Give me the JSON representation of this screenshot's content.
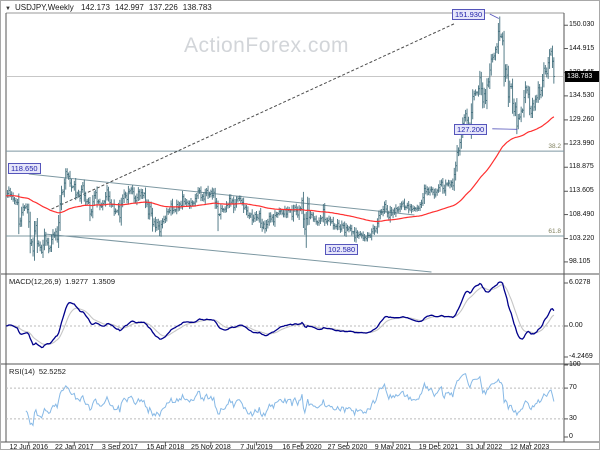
{
  "header": {
    "dropdown_icon": "▼",
    "symbol": "USDJPY,Weekly",
    "open": "142.173",
    "high": "142.997",
    "low": "137.226",
    "close": "138.783"
  },
  "watermark": "ActionForex.com",
  "colors": {
    "candle": "#44707e",
    "ma_line": "#ff2f2f",
    "macd_line": "#00008b",
    "macd_signal": "#c6c6c6",
    "rsi_line": "#87b9e6",
    "annotation_text": "#2222aa",
    "level_lines": "#7d98a2",
    "trendline": "#4d4d4d",
    "current_price_line": "#b4b4b4",
    "tag_bg": "#000000",
    "tag_fg": "#ffffff",
    "border": "#555555",
    "dashed_ref": "#bbbbbb"
  },
  "chart_data": {
    "type": "ohlc",
    "symbol": "USDJPY",
    "timeframe": "Weekly",
    "x_labels": [
      "12 Jun 2016",
      "22 Jan 2017",
      "3 Sep 2017",
      "15 Apr 2018",
      "25 Nov 2018",
      "7 Jul 2019",
      "16 Feb 2020",
      "27 Sep 2020",
      "9 May 2021",
      "19 Dec 2021",
      "31 Jul 2022",
      "12 Mar 2023"
    ],
    "price_panel": {
      "y_ticks": [
        "150.030",
        "144.915",
        "139.645",
        "134.530",
        "129.260",
        "123.990",
        "118.875",
        "113.605",
        "108.490",
        "103.220",
        "98.105"
      ],
      "last_price_tag": "138.783",
      "current_price_line": 138.783,
      "fib_levels": [
        {
          "label": "38.2",
          "price": 122.4
        },
        {
          "label": "61.8",
          "price": 103.8
        }
      ],
      "annotations": [
        {
          "text": "151.930",
          "week": 347,
          "price": 151.94,
          "anchor": "high",
          "gap": 10
        },
        {
          "text": "127.200",
          "week": 360,
          "price": 127.2,
          "anchor": "level",
          "gap": 26
        },
        {
          "text": "118.650",
          "week": 42,
          "price": 118.65,
          "anchor": "level",
          "at_left": true,
          "gap": 4
        },
        {
          "text": "102.580",
          "week": 254,
          "price": 102.58,
          "anchor": "low",
          "gap": 4
        }
      ],
      "trend_lines": [
        {
          "name": "rising-dashed-trendline",
          "from": {
            "week": 32,
            "price": 109.7
          },
          "to": {
            "week": 316,
            "price": 150.5
          },
          "style": "dashed"
        },
        {
          "name": "channel-upper",
          "from": {
            "week": 16,
            "price": 117.4
          },
          "to": {
            "week": 287,
            "price": 108.4
          },
          "style": "solid"
        },
        {
          "name": "channel-lower",
          "from": {
            "week": 28,
            "price": 104.2
          },
          "to": {
            "week": 299,
            "price": 95.9
          },
          "style": "solid"
        }
      ],
      "ma": {
        "kind": "EMA",
        "period": 100
      }
    },
    "weekly_closes": [
      112.6,
      113.1,
      113.8,
      112.9,
      112.5,
      111.9,
      111.5,
      111.2,
      111.1,
      106.4,
      107.1,
      108.9,
      110.1,
      110.0,
      110.2,
      109.6,
      106.9,
      102.2,
      102.5,
      100.5,
      104.9,
      106.1,
      102.1,
      101.8,
      101.3,
      100.2,
      101.8,
      104.0,
      102.7,
      102.3,
      101.0,
      101.3,
      103.0,
      104.2,
      103.8,
      104.7,
      103.1,
      106.7,
      110.9,
      113.3,
      113.5,
      115.4,
      117.9,
      117.3,
      116.9,
      115.4,
      114.5,
      114.6,
      115.1,
      112.8,
      113.2,
      112.8,
      112.1,
      114.0,
      114.8,
      112.7,
      111.3,
      111.4,
      111.1,
      108.6,
      109.1,
      111.3,
      112.7,
      113.3,
      111.3,
      111.3,
      110.4,
      110.3,
      110.9,
      111.3,
      112.4,
      113.9,
      112.5,
      111.1,
      110.7,
      110.7,
      109.2,
      109.2,
      109.3,
      110.2,
      107.8,
      110.8,
      112.0,
      113.0,
      112.6,
      111.8,
      113.5,
      113.7,
      114.1,
      113.5,
      112.1,
      111.5,
      112.2,
      113.5,
      112.6,
      113.3,
      112.7,
      113.1,
      111.1,
      110.8,
      108.6,
      110.2,
      108.8,
      106.3,
      106.9,
      105.7,
      106.8,
      106.0,
      104.7,
      106.3,
      107.0,
      107.4,
      107.7,
      109.1,
      109.1,
      109.4,
      110.8,
      109.4,
      109.5,
      109.5,
      110.7,
      110.0,
      110.8,
      110.5,
      112.4,
      111.4,
      111.0,
      111.2,
      110.9,
      110.5,
      111.2,
      111.0,
      111.0,
      112.0,
      112.6,
      113.7,
      113.7,
      112.2,
      112.5,
      111.9,
      113.2,
      113.8,
      112.8,
      112.9,
      113.5,
      112.7,
      113.4,
      111.2,
      110.3,
      108.5,
      108.5,
      109.8,
      109.6,
      109.5,
      109.7,
      110.5,
      110.7,
      112.0,
      111.2,
      111.5,
      110.0,
      110.9,
      111.7,
      112.0,
      112.0,
      111.6,
      111.1,
      109.9,
      110.1,
      109.3,
      108.3,
      108.2,
      108.6,
      107.3,
      107.7,
      108.5,
      107.9,
      107.7,
      108.7,
      106.6,
      105.7,
      106.4,
      105.4,
      106.3,
      106.9,
      108.1,
      107.5,
      107.9,
      106.9,
      108.3,
      108.5,
      108.7,
      109.2,
      109.3,
      108.8,
      108.6,
      109.5,
      108.6,
      109.4,
      109.5,
      109.5,
      108.1,
      109.5,
      110.1,
      109.3,
      108.4,
      109.7,
      109.8,
      111.6,
      107.5,
      105.3,
      107.6,
      110.8,
      107.9,
      108.5,
      108.4,
      107.5,
      107.5,
      106.9,
      106.7,
      107.1,
      107.6,
      107.8,
      109.6,
      107.4,
      106.9,
      107.2,
      107.5,
      106.9,
      107.0,
      106.1,
      105.8,
      105.9,
      106.6,
      105.8,
      105.3,
      106.2,
      106.1,
      104.6,
      105.6,
      105.3,
      105.6,
      105.4,
      104.7,
      104.7,
      103.4,
      104.6,
      103.9,
      104.1,
      104.2,
      104.0,
      103.3,
      103.5,
      103.2,
      103.9,
      103.9,
      103.8,
      104.7,
      105.4,
      104.9,
      105.4,
      106.6,
      108.3,
      109.0,
      108.9,
      109.6,
      110.7,
      109.7,
      108.8,
      107.9,
      109.3,
      108.6,
      109.3,
      108.9,
      109.8,
      109.5,
      109.7,
      110.2,
      110.8,
      111.0,
      110.1,
      110.1,
      110.5,
      109.7,
      110.2,
      109.6,
      109.8,
      109.8,
      109.7,
      109.9,
      109.9,
      110.7,
      111.0,
      112.2,
      114.2,
      113.5,
      114.0,
      113.4,
      113.9,
      114.0,
      113.4,
      112.8,
      113.4,
      113.7,
      114.4,
      115.1,
      115.6,
      114.2,
      113.7,
      115.2,
      115.2,
      115.4,
      115.0,
      115.5,
      114.8,
      117.3,
      119.2,
      122.1,
      122.5,
      124.3,
      126.5,
      128.5,
      129.8,
      130.6,
      129.2,
      127.9,
      127.1,
      130.9,
      134.4,
      135.0,
      135.2,
      135.2,
      136.1,
      138.5,
      136.1,
      133.2,
      135.0,
      133.5,
      136.9,
      137.6,
      140.2,
      142.6,
      143.0,
      143.3,
      144.7,
      145.3,
      148.7,
      147.6,
      147.5,
      146.6,
      138.8,
      140.4,
      139.1,
      134.3,
      136.6,
      136.6,
      132.9,
      131.1,
      132.1,
      127.9,
      129.6,
      129.9,
      131.2,
      131.4,
      134.2,
      136.4,
      135.8,
      134.9,
      131.8,
      130.7,
      132.8,
      132.1,
      133.8,
      134.1,
      136.3,
      134.8,
      135.7,
      137.9,
      140.6,
      139.9,
      139.4,
      141.8,
      143.7,
      144.3,
      142.1,
      138.783
    ],
    "extreme_overrides": {
      "25": {
        "low": 99.9
      },
      "42": {
        "high": 118.66
      },
      "149": {
        "low": 104.87
      },
      "208": {
        "high": 112.23
      },
      "211": {
        "low": 101.19
      },
      "254": {
        "low": 102.58
      },
      "296": {
        "high": 114.7
      },
      "347": {
        "high": 151.94
      },
      "356": {
        "low": 130.6
      },
      "360": {
        "low": 127.22
      },
      "383": {
        "high": 145.07
      }
    },
    "final_week_ohlc": {
      "open": 142.173,
      "high": 142.997,
      "low": 137.226,
      "close": 138.783
    },
    "macd_panel": {
      "label": "MACD(12,26,9)",
      "macd_value": "1.9277",
      "signal_value": "1.3509",
      "y_labels": [
        "6.0278",
        "0.00",
        "-4.2469"
      ],
      "params": [
        12,
        26,
        9
      ]
    },
    "rsi_panel": {
      "label": "RSI(14)",
      "value": "52.5252",
      "y_labels": [
        "100",
        "70",
        "30",
        "0"
      ],
      "levels": [
        70,
        30
      ],
      "period": 14
    }
  }
}
